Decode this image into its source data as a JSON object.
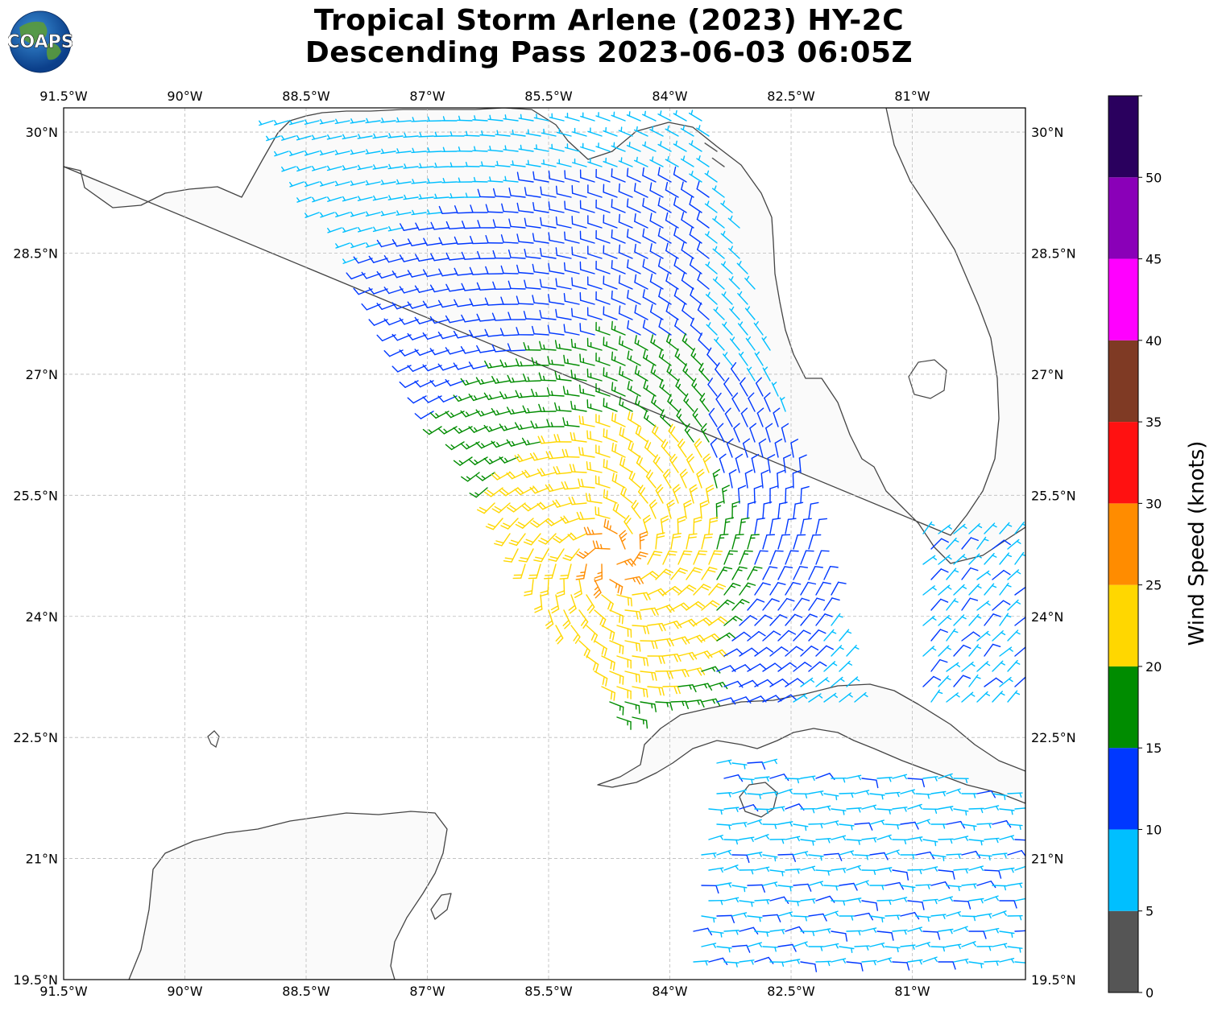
{
  "title": {
    "line1": "Tropical Storm Arlene (2023) HY-2C",
    "line2": "Descending Pass 2023-06-03 06:05Z"
  },
  "logo": {
    "text": "COAPS"
  },
  "map": {
    "lon_range": [
      -91.5,
      -79.6
    ],
    "lat_range": [
      19.5,
      30.3
    ],
    "lon_tick_labels": [
      "91.5°W",
      "90°W",
      "88.5°W",
      "87°W",
      "85.5°W",
      "84°W",
      "82.5°W",
      "81°W"
    ],
    "lat_tick_labels": [
      "30°N",
      "28.5°N",
      "27°N",
      "25.5°N",
      "24°N",
      "22.5°N",
      "21°N",
      "19.5°N"
    ],
    "grid": true,
    "colors": {
      "land": "#fafafa",
      "ocean": "#ffffff",
      "coast": "#444444",
      "grid": "#bbbbbb"
    }
  },
  "colorbar": {
    "label": "Wind Speed (knots)",
    "tick_labels": [
      "0",
      "5",
      "10",
      "15",
      "20",
      "25",
      "30",
      "35",
      "40",
      "45",
      "50"
    ],
    "bins": [
      {
        "min": 0,
        "max": 5,
        "color": "#555555"
      },
      {
        "min": 5,
        "max": 10,
        "color": "#00bfff"
      },
      {
        "min": 10,
        "max": 15,
        "color": "#0038ff"
      },
      {
        "min": 15,
        "max": 20,
        "color": "#008c00"
      },
      {
        "min": 20,
        "max": 25,
        "color": "#ffd700"
      },
      {
        "min": 25,
        "max": 30,
        "color": "#ff8c00"
      },
      {
        "min": 30,
        "max": 35,
        "color": "#ff1111"
      },
      {
        "min": 35,
        "max": 40,
        "color": "#7f3a24"
      },
      {
        "min": 40,
        "max": 45,
        "color": "#ff00ff"
      },
      {
        "min": 45,
        "max": 50,
        "color": "#8a00b8"
      },
      {
        "min": 50,
        "max": 55,
        "color": "#2a005e"
      }
    ]
  },
  "storm_center": {
    "lon": -84.7,
    "lat": 24.7
  }
}
